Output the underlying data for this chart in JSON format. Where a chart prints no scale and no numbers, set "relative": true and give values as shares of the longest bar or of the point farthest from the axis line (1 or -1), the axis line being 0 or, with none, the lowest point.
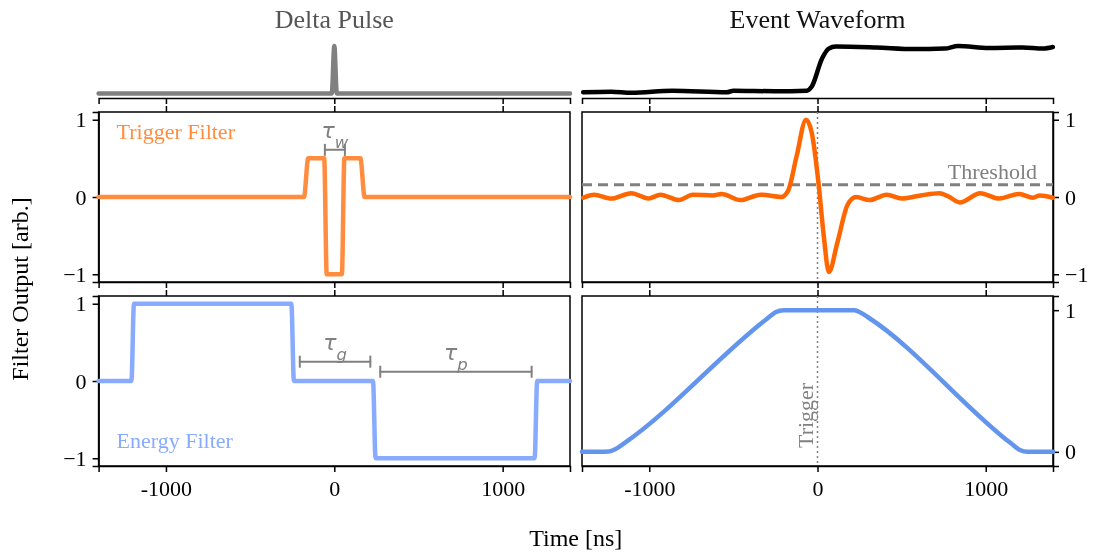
{
  "chart_data": [
    {
      "type": "line",
      "title": "Delta Pulse",
      "relative": true,
      "tick_labels": false,
      "xlim": [
        -1400,
        1400
      ],
      "xticks": [
        -1000,
        0,
        1000
      ],
      "x": [
        -1400,
        -15,
        0,
        15,
        1400
      ],
      "series": [
        {
          "color": "#808080",
          "values": [
            0.085,
            0.085,
            1,
            0.085,
            0.085
          ]
        }
      ]
    },
    {
      "type": "line",
      "title": "Event Waveform",
      "relative": true,
      "tick_labels": false,
      "xlim": [
        -1400,
        1400
      ],
      "xticks": [
        -1000,
        0,
        1000
      ],
      "x": [
        -1393,
        -1227,
        -1106,
        -863,
        -540,
        -499,
        -256,
        -64,
        -34,
        27,
        67,
        108,
        350,
        573,
        755,
        836,
        1018,
        1220,
        1341,
        1399
      ],
      "series": [
        {
          "color": "#000000",
          "values": [
            0.11,
            0.12,
            0.1,
            0.14,
            0.11,
            0.14,
            0.13,
            0.14,
            0.22,
            0.76,
            0.95,
            0.99,
            0.97,
            0.94,
            0.95,
            1,
            0.96,
            0.97,
            0.95,
            0.98
          ]
        }
      ]
    },
    {
      "type": "line",
      "tick_labels": "y",
      "xlim": [
        -1400,
        1400
      ],
      "xticks": [
        -1000,
        0,
        1000
      ],
      "ylim": [
        -1.1,
        1.1
      ],
      "yticks": [
        -1,
        0,
        1
      ],
      "ylabel": "Filter Output [arb.]",
      "series": [
        {
          "name": "Trigger Filter",
          "color": "#ff8c3f",
          "x": [
            -1400,
            -180,
            -155,
            -60,
            -45,
            45,
            60,
            155,
            180,
            1400
          ],
          "values": [
            0,
            0,
            0.5,
            0.5,
            -1,
            -1,
            0.5,
            0.5,
            0,
            0
          ]
        },
        {
          "color": "#808080",
          "x": [
            -56,
            63
          ],
          "values": [
            0.61,
            0.61
          ]
        }
      ],
      "annotations": [
        "τ$_{w}$"
      ]
    },
    {
      "type": "line",
      "tick_labels": "y",
      "xlim": [
        -1400,
        1400
      ],
      "xticks": [
        -1000,
        0,
        1000
      ],
      "ylim": [
        -1.1,
        1.1
      ],
      "yticks": [
        -1,
        0,
        1
      ],
      "x": [
        -1393,
        -1328,
        -1227,
        -1106,
        -1005,
        -934,
        -823,
        -742,
        -620,
        -570,
        -459,
        -337,
        -216,
        -175,
        -125,
        -68,
        -34,
        7,
        37,
        68,
        118,
        179,
        229,
        310,
        411,
        502,
        614,
        725,
        776,
        846,
        968,
        1079,
        1200,
        1281,
        1322,
        1399
      ],
      "series": [
        {
          "color": "#ff6600",
          "values": [
            -0.01,
            0.03,
            -0.02,
            0.05,
            -0.02,
            0.03,
            -0.04,
            0.03,
            0.02,
            0.04,
            -0.04,
            0.03,
            0,
            0.08,
            0.52,
            1,
            0.83,
            0.16,
            -0.5,
            -0.97,
            -0.59,
            -0.1,
            0,
            -0.04,
            0.03,
            -0.02,
            0.02,
            0.05,
            0.01,
            -0.07,
            0.05,
            -0.02,
            0.04,
            -0.01,
            0.02,
            -0.01
          ]
        }
      ],
      "ref_lines": [
        {
          "axis": "y",
          "value": 0.16,
          "label": "Threshold",
          "color": "#808080",
          "line_style": "dashed"
        },
        {
          "axis": "x",
          "value": 0,
          "color": "#808080",
          "line_style": "dotted"
        }
      ]
    },
    {
      "type": "line",
      "xlim": [
        -1400,
        1400
      ],
      "xticks": [
        -1000,
        0,
        1000
      ],
      "ylim": [
        -1.1,
        1.1
      ],
      "yticks": [
        -1,
        0,
        1
      ],
      "xlabel": "Time [ns]",
      "series": [
        {
          "name": "Energy Filter",
          "color": "#88aaff",
          "x": [
            -1400,
            -1205,
            -1190,
            -255,
            -240,
            230,
            245,
            1190,
            1205,
            1400
          ],
          "values": [
            0,
            0,
            1,
            1,
            0,
            0,
            -1,
            -1,
            0,
            0
          ]
        },
        {
          "color": "#808080",
          "x": [
            -205,
            214
          ],
          "values": [
            0.25,
            0.25
          ]
        },
        {
          "color": "#808080",
          "x": [
            273,
            1172
          ],
          "values": [
            0.12,
            0.12
          ]
        }
      ],
      "annotations": [
        "τ$_{g}$",
        "τ$_{p}$"
      ]
    },
    {
      "type": "line",
      "xlim": [
        -1400,
        1400
      ],
      "xticks": [
        -1000,
        0,
        1000
      ],
      "ylim": [
        -0.1,
        1.1
      ],
      "yticks": [
        0,
        1
      ],
      "x": [
        -1400,
        -1240,
        -1200,
        -1150,
        -300,
        -250,
        -200,
        220,
        260,
        300,
        1150,
        1200,
        1250,
        1400
      ],
      "series": [
        {
          "color": "#6495ed",
          "values": [
            0,
            0.003,
            0.02,
            0.06,
            0.94,
            0.985,
            1,
            1,
            0.98,
            0.95,
            0.06,
            0.015,
            0,
            0
          ]
        }
      ],
      "ref_lines": [
        {
          "axis": "x",
          "value": 0,
          "label": "Trigger",
          "color": "#808080",
          "line_style": "dotted"
        }
      ]
    }
  ]
}
